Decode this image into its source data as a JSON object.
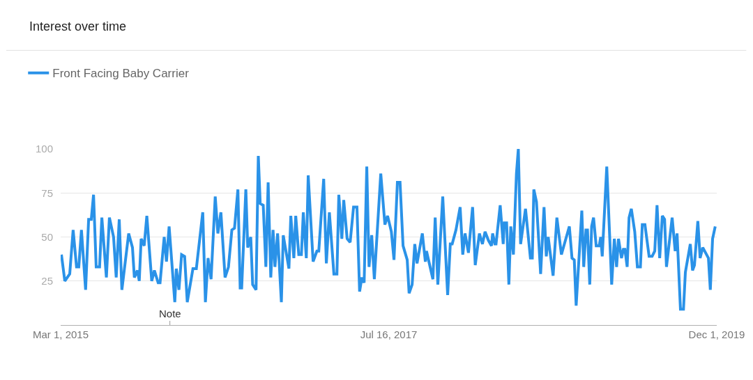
{
  "chart_data": {
    "type": "line",
    "title": "Interest over time",
    "x": [
      "2015-03-03",
      "2015-03-12",
      "2015-03-25",
      "2015-04-03",
      "2015-04-12",
      "2015-04-18",
      "2015-04-25",
      "2015-05-06",
      "2015-05-14",
      "2015-05-21",
      "2015-05-27",
      "2015-06-03",
      "2015-06-12",
      "2015-06-18",
      "2015-06-30",
      "2015-07-08",
      "2015-07-19",
      "2015-07-26",
      "2015-08-03",
      "2015-08-10",
      "2015-08-28",
      "2015-09-07",
      "2015-09-12",
      "2015-09-20",
      "2015-09-25",
      "2015-09-30",
      "2015-10-08",
      "2015-10-15",
      "2015-10-28",
      "2015-11-04",
      "2015-11-14",
      "2015-11-19",
      "2015-11-30",
      "2015-12-06",
      "2015-12-13",
      "2015-12-28",
      "2016-01-01",
      "2016-01-08",
      "2016-01-15",
      "2016-01-23",
      "2016-01-30",
      "2016-02-14",
      "2016-02-23",
      "2016-03-11",
      "2016-03-18",
      "2016-03-25",
      "2016-04-02",
      "2016-04-13",
      "2016-04-20",
      "2016-04-28",
      "2016-05-09",
      "2016-05-18",
      "2016-05-27",
      "2016-06-03",
      "2016-06-12",
      "2016-06-18",
      "2016-06-22",
      "2016-07-03",
      "2016-07-08",
      "2016-07-16",
      "2016-07-21",
      "2016-07-30",
      "2016-08-05",
      "2016-08-10",
      "2016-08-18",
      "2016-08-25",
      "2016-08-31",
      "2016-09-07",
      "2016-09-13",
      "2016-09-18",
      "2016-09-25",
      "2016-10-05",
      "2016-10-10",
      "2016-10-25",
      "2016-10-30",
      "2016-11-07",
      "2016-11-12",
      "2016-11-20",
      "2016-11-27",
      "2016-12-02",
      "2016-12-10",
      "2016-12-15",
      "2016-12-28",
      "2017-01-07",
      "2017-01-12",
      "2017-01-25",
      "2017-02-01",
      "2017-02-09",
      "2017-02-21",
      "2017-03-01",
      "2017-03-06",
      "2017-03-14",
      "2017-03-19",
      "2017-03-28",
      "2017-04-05",
      "2017-04-14",
      "2017-04-23",
      "2017-04-30",
      "2017-05-06",
      "2017-05-12",
      "2017-05-19",
      "2017-05-25",
      "2017-06-01",
      "2017-06-08",
      "2017-06-25",
      "2017-07-06",
      "2017-07-13",
      "2017-07-23",
      "2017-07-30",
      "2017-08-08",
      "2017-08-15",
      "2017-08-23",
      "2017-09-03",
      "2017-09-08",
      "2017-09-16",
      "2017-09-23",
      "2017-09-29",
      "2017-10-13",
      "2017-10-21",
      "2017-10-24",
      "2017-11-10",
      "2017-11-16",
      "2017-11-23",
      "2017-12-06",
      "2017-12-19",
      "2017-12-26",
      "2017-12-31",
      "2018-01-10",
      "2018-01-21",
      "2018-01-28",
      "2018-02-03",
      "2018-02-12",
      "2018-02-23",
      "2018-03-02",
      "2018-03-13",
      "2018-03-21",
      "2018-03-28",
      "2018-04-06",
      "2018-04-14",
      "2018-04-17",
      "2018-04-23",
      "2018-04-26",
      "2018-05-07",
      "2018-05-15",
      "2018-05-18",
      "2018-05-24",
      "2018-05-30",
      "2018-06-04",
      "2018-06-11",
      "2018-06-19",
      "2018-06-24",
      "2018-06-30",
      "2018-07-13",
      "2018-07-26",
      "2018-07-31",
      "2018-08-04",
      "2018-08-11",
      "2018-08-22",
      "2018-08-31",
      "2018-09-06",
      "2018-09-11",
      "2018-09-24",
      "2018-10-04",
      "2018-10-16",
      "2018-11-06",
      "2018-11-13",
      "2018-11-19",
      "2018-11-24",
      "2018-12-09",
      "2018-12-14",
      "2018-12-20",
      "2018-12-24",
      "2018-12-30",
      "2019-01-04",
      "2019-01-09",
      "2019-01-16",
      "2019-01-24",
      "2019-01-28",
      "2019-02-01",
      "2019-02-13",
      "2019-02-26",
      "2019-03-05",
      "2019-03-11",
      "2019-03-16",
      "2019-03-24",
      "2019-03-29",
      "2019-04-02",
      "2019-04-08",
      "2019-04-13",
      "2019-04-19",
      "2019-04-28",
      "2019-05-05",
      "2019-05-13",
      "2019-05-18",
      "2019-05-25",
      "2019-06-05",
      "2019-06-13",
      "2019-06-20",
      "2019-06-26",
      "2019-07-03",
      "2019-07-10",
      "2019-07-16",
      "2019-07-21",
      "2019-08-05",
      "2019-08-13",
      "2019-08-18",
      "2019-08-27",
      "2019-09-04",
      "2019-09-09",
      "2019-09-22",
      "2019-09-28",
      "2019-10-03",
      "2019-10-12",
      "2019-10-18",
      "2019-10-25",
      "2019-11-09",
      "2019-11-14",
      "2019-11-20",
      "2019-11-27"
    ],
    "series": [
      {
        "name": "Front Facing Baby Carrier",
        "color": "#2a92e8",
        "values": [
          40,
          25,
          29,
          54,
          33,
          33,
          54,
          20,
          60,
          60,
          74,
          33,
          33,
          61,
          27,
          61,
          50,
          27,
          60,
          20,
          52,
          44,
          27,
          31,
          25,
          49,
          45,
          62,
          25,
          31,
          24,
          24,
          50,
          36,
          56,
          13,
          32,
          20,
          40,
          39,
          13,
          32,
          32,
          64,
          13,
          38,
          26,
          73,
          52,
          64,
          27,
          33,
          54,
          55,
          77,
          21,
          21,
          77,
          44,
          50,
          23,
          20,
          96,
          69,
          68,
          33,
          81,
          27,
          54,
          33,
          52,
          13,
          51,
          32,
          62,
          38,
          62,
          40,
          40,
          64,
          38,
          85,
          36,
          42,
          42,
          83,
          35,
          64,
          29,
          29,
          74,
          49,
          71,
          49,
          47,
          67,
          67,
          19,
          27,
          24,
          90,
          33,
          51,
          26,
          86,
          57,
          62,
          53,
          37,
          81,
          81,
          45,
          37,
          18,
          23,
          46,
          35,
          52,
          36,
          42,
          26,
          61,
          23,
          73,
          17,
          46,
          46,
          54,
          67,
          40,
          52,
          41,
          67,
          34,
          52,
          46,
          53,
          48,
          45,
          52,
          46,
          46,
          68,
          46,
          58,
          58,
          23,
          56,
          40,
          86,
          100,
          46,
          66,
          38,
          38,
          77,
          70,
          29,
          67,
          39,
          50,
          28,
          61,
          40,
          56,
          38,
          37,
          11,
          65,
          33,
          54,
          54,
          23,
          56,
          61,
          45,
          45,
          50,
          39,
          90,
          23,
          49,
          33,
          49,
          38,
          43,
          43,
          33,
          61,
          66,
          53,
          33,
          33,
          57,
          57,
          39,
          39,
          42,
          68,
          38,
          62,
          60,
          33,
          61,
          42,
          52,
          9,
          9,
          30,
          46,
          31,
          34,
          59,
          38,
          44,
          38,
          20,
          49,
          56
        ]
      }
    ],
    "xlim": [
      "2015-03-01",
      "2019-12-01"
    ],
    "xticks": [
      {
        "value": "2015-03-01",
        "label": "Mar 1, 2015"
      },
      {
        "value": "2017-07-16",
        "label": "Jul 16, 2017"
      },
      {
        "value": "2019-12-01",
        "label": "Dec 1, 2019"
      }
    ],
    "ylim": [
      0,
      100
    ],
    "yticks": [
      25,
      50,
      75,
      100
    ],
    "grid": "y",
    "legend": "top left",
    "marker": "none",
    "line_style": "solid",
    "annotations": [
      "Note"
    ]
  }
}
